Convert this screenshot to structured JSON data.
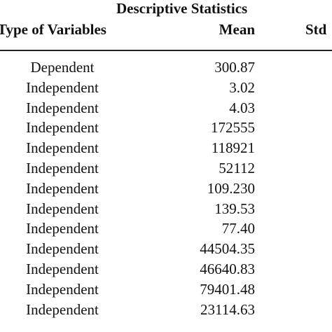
{
  "table": {
    "super_header": "Descriptive Statistics",
    "headers": {
      "type": "Type of Variables",
      "mean": "Mean",
      "std": "Std"
    },
    "rows": [
      {
        "type": "Dependent",
        "mean": "300.87"
      },
      {
        "type": "Independent",
        "mean": "3.02"
      },
      {
        "type": "Independent",
        "mean": "4.03"
      },
      {
        "type": "Independent",
        "mean": "172555"
      },
      {
        "type": "Independent",
        "mean": "118921"
      },
      {
        "type": "Independent",
        "mean": "52112"
      },
      {
        "type": "Independent",
        "mean": "109.230"
      },
      {
        "type": "Independent",
        "mean": "139.53"
      },
      {
        "type": "Independent",
        "mean": "77.40"
      },
      {
        "type": "Independent",
        "mean": "44504.35"
      },
      {
        "type": "Independent",
        "mean": "46640.83"
      },
      {
        "type": "Independent",
        "mean": "79401.48"
      },
      {
        "type": "Independent",
        "mean": "23114.63"
      }
    ]
  }
}
